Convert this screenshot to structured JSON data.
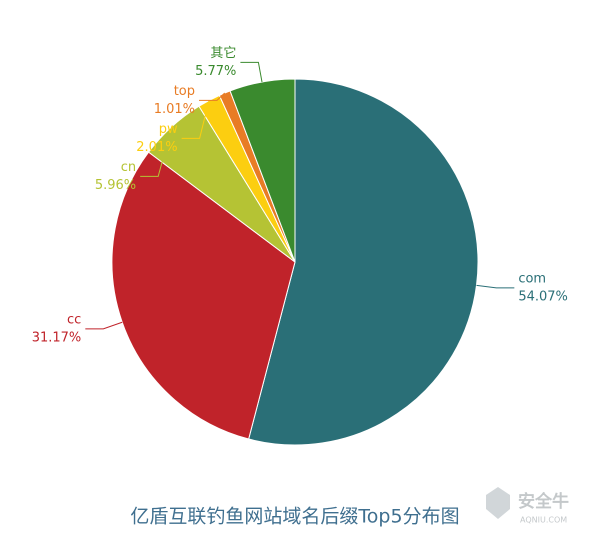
{
  "chart_data": {
    "type": "pie",
    "title": "亿盾互联钓鱼网站域名后缀Top5分布图",
    "categories": [
      "com",
      "cc",
      "cn",
      "pw",
      "top",
      "其它"
    ],
    "values": [
      54.07,
      31.17,
      5.96,
      2.01,
      1.01,
      5.77
    ],
    "value_labels": [
      "54.07%",
      "31.17%",
      "5.96%",
      "2.01%",
      "1.01%",
      "5.77%"
    ],
    "colors": [
      "#2a6f77",
      "#c0232a",
      "#b5c334",
      "#fcce10",
      "#e87c25",
      "#3a8a2e"
    ],
    "watermark": [
      "安全牛",
      "AQNIU.COM"
    ]
  }
}
